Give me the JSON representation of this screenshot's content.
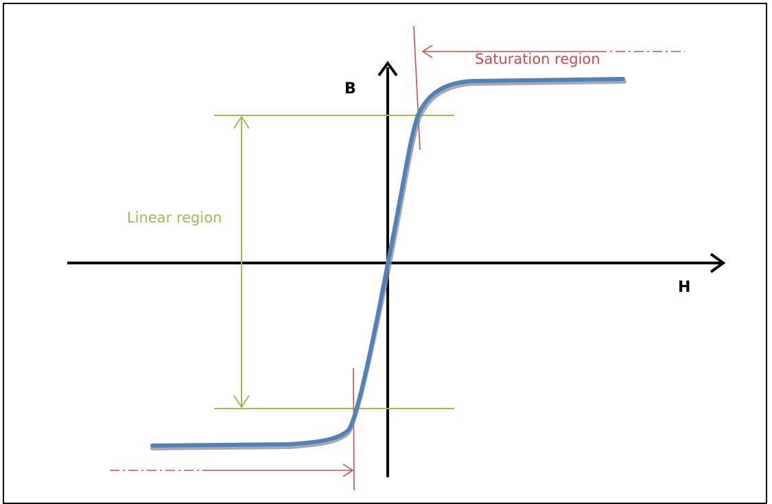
{
  "labels": {
    "b_axis": "B",
    "h_axis": "H",
    "linear_region": "Linear region",
    "saturation_region": "Saturation region"
  },
  "colors": {
    "frame": "#000000",
    "axis": "#000000",
    "curve": "#4f81bd",
    "curve_shadow": "#8c8c8c",
    "linear": "#9bbb59",
    "saturation": "#c0504d"
  }
}
